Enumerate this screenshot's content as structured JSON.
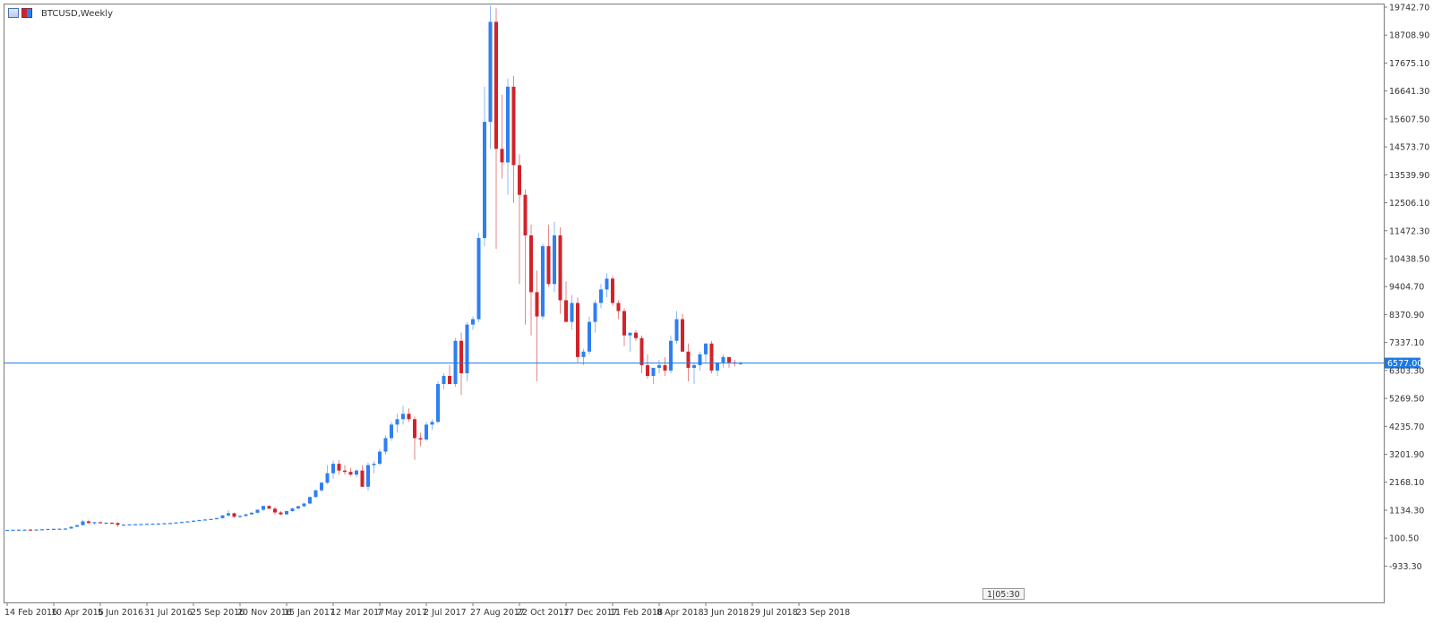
{
  "window": {
    "title": "BTCUSD,Weekly",
    "icons": [
      "symbol-list-icon",
      "chart-type-icon"
    ]
  },
  "countdown": "1|05:30",
  "colors": {
    "bull": "#2f7ff2",
    "bear": "#d2232a",
    "price_line": "#1e78e6",
    "price_label_bg": "#1e78e6",
    "grid_frame": "#7a7a7a"
  },
  "chart_data": {
    "type": "candlestick",
    "symbol": "BTCUSD",
    "timeframe": "Weekly",
    "ylim": [
      -1450,
      19742.7
    ],
    "y_ticks": [
      19742.7,
      18708.9,
      17675.1,
      16641.3,
      15607.5,
      14573.7,
      13539.9,
      12506.1,
      11472.3,
      10438.5,
      9404.7,
      8370.9,
      7337.1,
      6303.3,
      5269.5,
      4235.7,
      3201.9,
      2168.1,
      1134.3,
      100.5,
      -933.3
    ],
    "y_tick_labels": [
      "19742.70",
      "18708.90",
      "17675.10",
      "16641.30",
      "15607.50",
      "14573.70",
      "13539.90",
      "12506.10",
      "11472.30",
      "10438.50",
      "9404.70",
      "8370.90",
      "7337.10",
      "6303.30",
      "5269.50",
      "4235.70",
      "3201.90",
      "2168.10",
      "1134.30",
      "100.50",
      "-933.30"
    ],
    "x_labels": [
      "14 Feb 2016",
      "10 Apr 2016",
      "5 Jun 2016",
      "31 Jul 2016",
      "25 Sep 2016",
      "20 Nov 2016",
      "15 Jan 2017",
      "12 Mar 2017",
      "7 May 2017",
      "2 Jul 2017",
      "27 Aug 2017",
      "22 Oct 2017",
      "17 Dec 2017",
      "11 Feb 2018",
      "8 Apr 2018",
      "3 Jun 2018",
      "29 Jul 2018",
      "23 Sep 2018"
    ],
    "current_price": 6577.0,
    "current_price_label": "6577.00",
    "grid": false,
    "ohlc": [
      [
        400,
        410,
        395,
        405
      ],
      [
        405,
        415,
        400,
        410
      ],
      [
        410,
        420,
        402,
        415
      ],
      [
        415,
        425,
        408,
        418
      ],
      [
        418,
        430,
        410,
        415
      ],
      [
        415,
        425,
        405,
        420
      ],
      [
        420,
        440,
        415,
        430
      ],
      [
        430,
        445,
        420,
        440
      ],
      [
        440,
        455,
        430,
        445
      ],
      [
        445,
        460,
        440,
        450
      ],
      [
        450,
        470,
        445,
        455
      ],
      [
        455,
        530,
        450,
        520
      ],
      [
        520,
        600,
        510,
        580
      ],
      [
        580,
        780,
        570,
        720
      ],
      [
        720,
        780,
        620,
        660
      ],
      [
        660,
        700,
        600,
        690
      ],
      [
        690,
        710,
        640,
        660
      ],
      [
        660,
        690,
        630,
        670
      ],
      [
        670,
        690,
        640,
        660
      ],
      [
        660,
        680,
        520,
        590
      ],
      [
        590,
        620,
        570,
        600
      ],
      [
        600,
        620,
        580,
        610
      ],
      [
        610,
        625,
        590,
        615
      ],
      [
        615,
        630,
        600,
        620
      ],
      [
        620,
        640,
        605,
        630
      ],
      [
        630,
        645,
        615,
        635
      ],
      [
        635,
        655,
        620,
        640
      ],
      [
        640,
        660,
        625,
        650
      ],
      [
        650,
        670,
        635,
        660
      ],
      [
        660,
        690,
        650,
        680
      ],
      [
        680,
        710,
        665,
        700
      ],
      [
        700,
        730,
        690,
        720
      ],
      [
        720,
        760,
        710,
        745
      ],
      [
        745,
        780,
        730,
        770
      ],
      [
        770,
        800,
        750,
        790
      ],
      [
        790,
        820,
        770,
        810
      ],
      [
        810,
        860,
        790,
        840
      ],
      [
        840,
        960,
        820,
        940
      ],
      [
        940,
        1140,
        900,
        1020
      ],
      [
        1020,
        1050,
        850,
        890
      ],
      [
        890,
        960,
        860,
        920
      ],
      [
        920,
        1000,
        900,
        980
      ],
      [
        980,
        1060,
        960,
        1040
      ],
      [
        1040,
        1160,
        1010,
        1150
      ],
      [
        1150,
        1300,
        1100,
        1290
      ],
      [
        1290,
        1320,
        1180,
        1190
      ],
      [
        1190,
        1260,
        960,
        1050
      ],
      [
        1050,
        1110,
        950,
        980
      ],
      [
        980,
        1120,
        960,
        1100
      ],
      [
        1100,
        1220,
        1080,
        1200
      ],
      [
        1200,
        1300,
        1150,
        1280
      ],
      [
        1280,
        1400,
        1250,
        1380
      ],
      [
        1380,
        1650,
        1350,
        1620
      ],
      [
        1620,
        1900,
        1600,
        1870
      ],
      [
        1870,
        2200,
        1800,
        2150
      ],
      [
        2150,
        2800,
        2100,
        2500
      ],
      [
        2500,
        2980,
        2300,
        2850
      ],
      [
        2850,
        2990,
        2450,
        2600
      ],
      [
        2600,
        2800,
        2450,
        2550
      ],
      [
        2550,
        2700,
        2400,
        2450
      ],
      [
        2450,
        2650,
        2350,
        2600
      ],
      [
        2600,
        2800,
        2000,
        2000
      ],
      [
        2000,
        2900,
        1850,
        2800
      ],
      [
        2800,
        2950,
        2500,
        2850
      ],
      [
        2850,
        3400,
        2800,
        3300
      ],
      [
        3300,
        3900,
        3200,
        3800
      ],
      [
        3800,
        4400,
        3700,
        4300
      ],
      [
        4300,
        4700,
        4000,
        4500
      ],
      [
        4500,
        5000,
        4300,
        4700
      ],
      [
        4700,
        4900,
        4400,
        4500
      ],
      [
        4500,
        4600,
        3000,
        3800
      ],
      [
        3800,
        4000,
        3500,
        3750
      ],
      [
        3750,
        4400,
        3700,
        4300
      ],
      [
        4300,
        4500,
        4100,
        4400
      ],
      [
        4400,
        5900,
        4350,
        5800
      ],
      [
        5800,
        6200,
        5600,
        6100
      ],
      [
        6100,
        6500,
        5900,
        5800
      ],
      [
        5800,
        7500,
        5700,
        7400
      ],
      [
        7400,
        7700,
        5400,
        6200
      ],
      [
        6200,
        8100,
        5900,
        8000
      ],
      [
        8000,
        8300,
        7800,
        8200
      ],
      [
        8200,
        11400,
        8100,
        11200
      ],
      [
        11200,
        16800,
        10900,
        15500
      ],
      [
        15500,
        19800,
        14500,
        19200
      ],
      [
        19200,
        19700,
        10800,
        14500
      ],
      [
        14500,
        16500,
        13400,
        14000
      ],
      [
        14000,
        17100,
        12800,
        16800
      ],
      [
        16800,
        17200,
        12500,
        13900
      ],
      [
        13900,
        14300,
        9500,
        12800
      ],
      [
        12800,
        13000,
        8000,
        11300
      ],
      [
        11300,
        11700,
        7600,
        9200
      ],
      [
        9200,
        10000,
        5900,
        8300
      ],
      [
        8300,
        11000,
        8200,
        10900
      ],
      [
        10900,
        11700,
        9400,
        9500
      ],
      [
        9500,
        11800,
        9200,
        11300
      ],
      [
        11300,
        11600,
        8400,
        8900
      ],
      [
        8900,
        9600,
        8200,
        8100
      ],
      [
        8100,
        9100,
        7800,
        8800
      ],
      [
        8800,
        9000,
        6600,
        6800
      ],
      [
        6800,
        7100,
        6500,
        7000
      ],
      [
        7000,
        8300,
        6900,
        8100
      ],
      [
        8100,
        8900,
        7700,
        8800
      ],
      [
        8800,
        9500,
        8600,
        9300
      ],
      [
        9300,
        9900,
        9000,
        9700
      ],
      [
        9700,
        9800,
        8700,
        8800
      ],
      [
        8800,
        8900,
        8200,
        8500
      ],
      [
        8500,
        8600,
        7200,
        7600
      ],
      [
        7600,
        7700,
        7000,
        7700
      ],
      [
        7700,
        7800,
        7400,
        7500
      ],
      [
        7500,
        7600,
        6200,
        6500
      ],
      [
        6500,
        6900,
        6000,
        6100
      ],
      [
        6100,
        6400,
        5800,
        6400
      ],
      [
        6400,
        6700,
        6200,
        6500
      ],
      [
        6500,
        6800,
        6100,
        6300
      ],
      [
        6300,
        7600,
        6200,
        7400
      ],
      [
        7400,
        8500,
        7300,
        8200
      ],
      [
        8200,
        8400,
        7000,
        7000
      ],
      [
        7000,
        7300,
        5900,
        6400
      ],
      [
        6400,
        6600,
        5800,
        6500
      ],
      [
        6500,
        7000,
        6300,
        6900
      ],
      [
        6900,
        7300,
        6600,
        7300
      ],
      [
        7300,
        7400,
        6200,
        6300
      ],
      [
        6300,
        6500,
        6100,
        6600
      ],
      [
        6600,
        6900,
        6400,
        6800
      ],
      [
        6800,
        6800,
        6400,
        6600
      ],
      [
        6600,
        6700,
        6450,
        6570
      ],
      [
        6570,
        6650,
        6500,
        6577
      ]
    ]
  }
}
